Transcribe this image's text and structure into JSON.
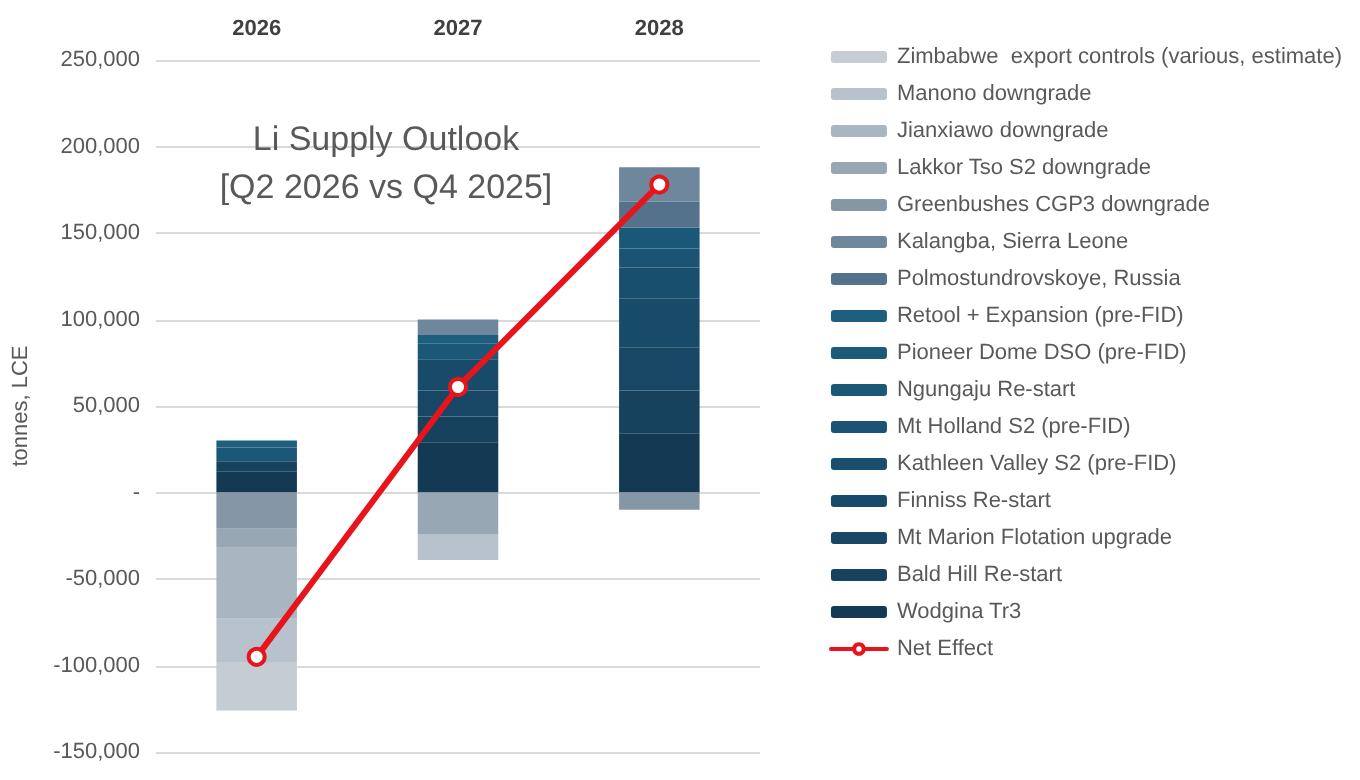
{
  "chart_data": {
    "type": "bar",
    "stacked": true,
    "title": "Li Supply Outlook",
    "subtitle": "[Q2 2026 vs Q4 2025]",
    "ylabel": "tonnes, LCE",
    "categories": [
      "2026",
      "2027",
      "2028"
    ],
    "ylim": [
      -150000,
      250000
    ],
    "yticks": [
      {
        "value": -150000,
        "label": "-150,000"
      },
      {
        "value": -100000,
        "label": "-100,000"
      },
      {
        "value": -50000,
        "label": "-50,000"
      },
      {
        "value": 0,
        "label": "-"
      },
      {
        "value": 50000,
        "label": "50,000"
      },
      {
        "value": 100000,
        "label": "100,000"
      },
      {
        "value": 150000,
        "label": "150,000"
      },
      {
        "value": 200000,
        "label": "200,000"
      },
      {
        "value": 250000,
        "label": "250,000"
      }
    ],
    "grid": "y",
    "legend": "right",
    "series": [
      {
        "name": "Wodgina Tr3",
        "color": "#133a52",
        "values": [
          12000,
          29000,
          34000
        ]
      },
      {
        "name": "Bald Hill Re-start",
        "color": "#16425d",
        "values": [
          6000,
          15000,
          25000
        ]
      },
      {
        "name": "Mt Marion Flotation upgrade",
        "color": "#174764",
        "values": [
          0,
          15000,
          25000
        ]
      },
      {
        "name": "Finniss Re-start",
        "color": "#184b69",
        "values": [
          0,
          18000,
          28000
        ]
      },
      {
        "name": "Kathleen Valley S2 (pre-FID)",
        "color": "#194f6e",
        "values": [
          0,
          0,
          18000
        ]
      },
      {
        "name": "Mt Holland S2 (pre-FID)",
        "color": "#1a5373",
        "values": [
          0,
          0,
          11000
        ]
      },
      {
        "name": "Ngungaju Re-start",
        "color": "#1b5777",
        "values": [
          8000,
          9000,
          12000
        ]
      },
      {
        "name": "Pioneer Dome DSO (pre-FID)",
        "color": "#1c5a7a",
        "values": [
          0,
          0,
          0
        ]
      },
      {
        "name": "Retool + Expansion (pre-FID)",
        "color": "#1e5f80",
        "values": [
          4000,
          5000,
          0
        ]
      },
      {
        "name": "Polmostundrovskoye, Russia",
        "color": "#55728c",
        "values": [
          0,
          0,
          15000
        ]
      },
      {
        "name": "Kalangba, Sierra Leone",
        "color": "#6f879c",
        "values": [
          0,
          9000,
          20000
        ]
      },
      {
        "name": "Greenbushes CGP3 downgrade",
        "color": "#8597a7",
        "values": [
          -21000,
          0,
          -10000
        ]
      },
      {
        "name": "Lakkor Tso S2 downgrade",
        "color": "#98a7b4",
        "values": [
          -11000,
          -24000,
          0
        ]
      },
      {
        "name": "Jianxiawo downgrade",
        "color": "#a9b5c0",
        "values": [
          -41000,
          0,
          0
        ]
      },
      {
        "name": "Manono downgrade",
        "color": "#b8c2cc",
        "values": [
          -25000,
          -15000,
          0
        ]
      },
      {
        "name": "Zimbabwe  export controls (various, estimate)",
        "color": "#c5ccd4",
        "values": [
          -28000,
          0,
          0
        ]
      },
      {
        "name": "Net Effect",
        "type": "line",
        "color": "#e8141b",
        "marker": "circle",
        "line_style": "solid",
        "values": [
          -95000,
          61000,
          178000
        ]
      }
    ]
  }
}
